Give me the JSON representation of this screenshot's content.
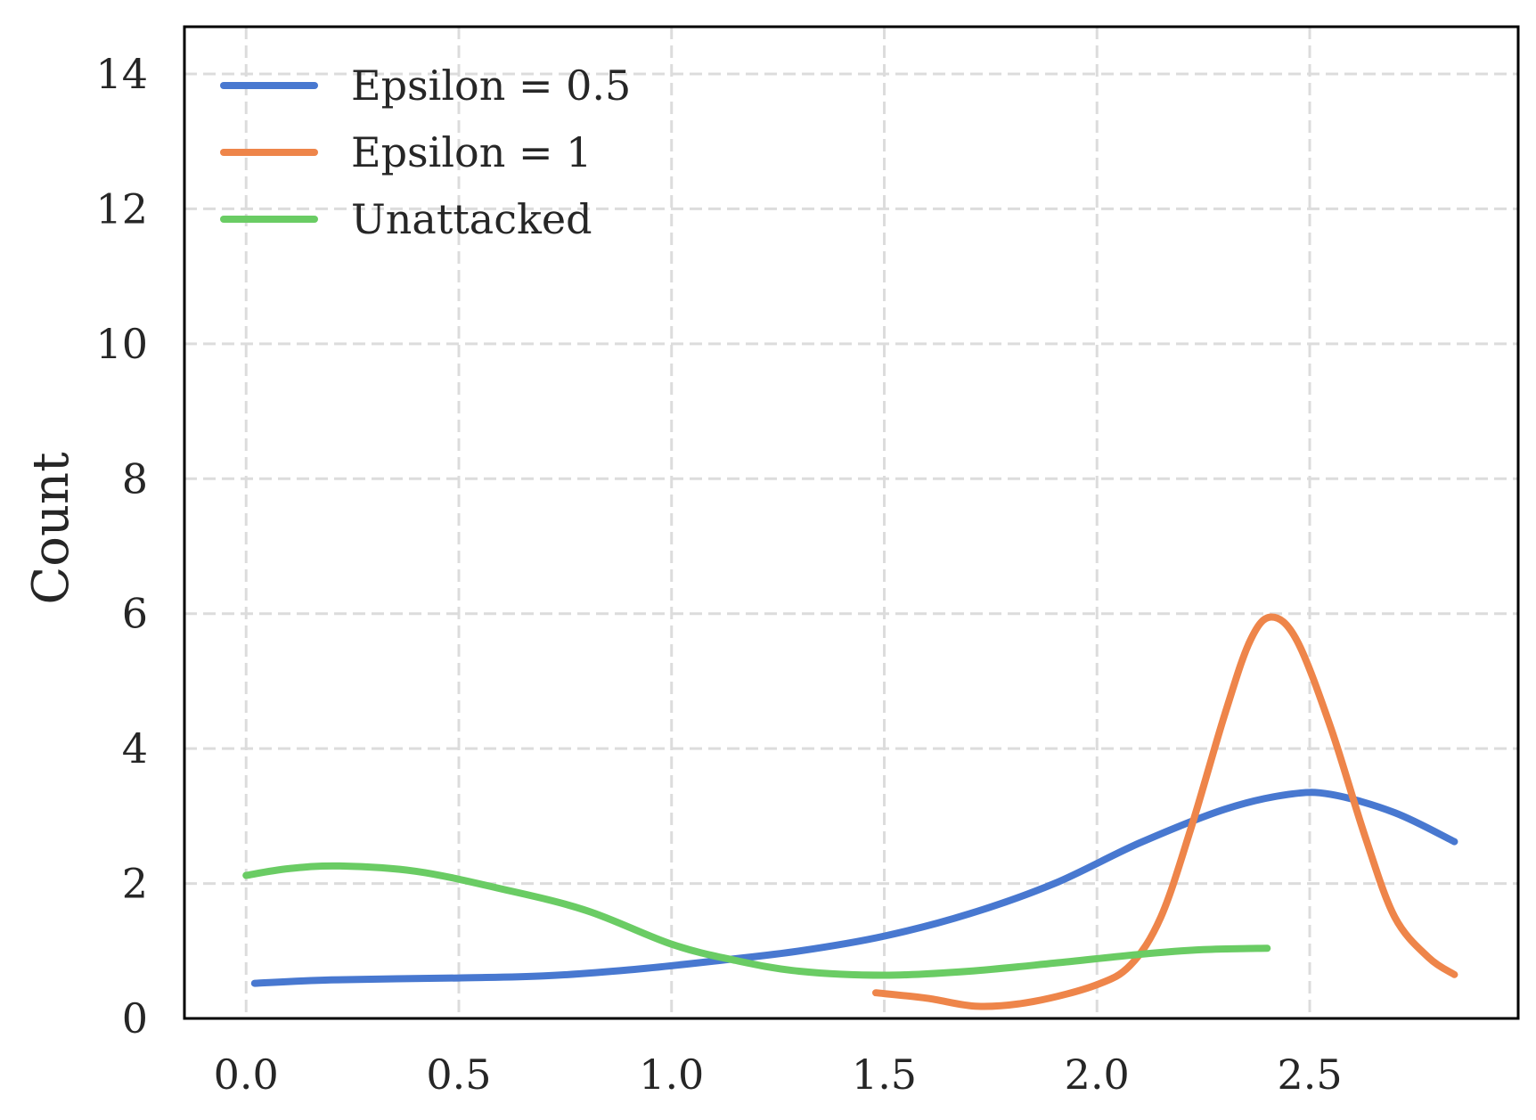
{
  "chart_data": {
    "type": "line",
    "title": "",
    "xlabel": "",
    "ylabel": "Count",
    "xlim": [
      -0.145,
      2.99
    ],
    "ylim": [
      0,
      14.7
    ],
    "grid": true,
    "legend_position": "top-left",
    "x_ticks": [
      0.0,
      0.5,
      1.0,
      1.5,
      2.0,
      2.5
    ],
    "x_tick_labels": [
      "0.0",
      "0.5",
      "1.0",
      "1.5",
      "2.0",
      "2.5"
    ],
    "y_ticks": [
      0,
      2,
      4,
      6,
      8,
      10,
      12,
      14
    ],
    "y_tick_labels": [
      "0",
      "2",
      "4",
      "6",
      "8",
      "10",
      "12",
      "14"
    ],
    "series": [
      {
        "name": "Epsilon = 0.5",
        "color": "#4878d0",
        "points": [
          [
            0.02,
            0.52
          ],
          [
            0.2,
            0.57
          ],
          [
            0.5,
            0.6
          ],
          [
            0.7,
            0.63
          ],
          [
            0.9,
            0.72
          ],
          [
            1.1,
            0.85
          ],
          [
            1.3,
            1.0
          ],
          [
            1.5,
            1.22
          ],
          [
            1.7,
            1.55
          ],
          [
            1.9,
            2.0
          ],
          [
            2.1,
            2.6
          ],
          [
            2.3,
            3.1
          ],
          [
            2.45,
            3.32
          ],
          [
            2.55,
            3.32
          ],
          [
            2.7,
            3.05
          ],
          [
            2.84,
            2.62
          ]
        ]
      },
      {
        "name": "Epsilon = 1",
        "color": "#ee854a",
        "points": [
          [
            1.48,
            0.38
          ],
          [
            1.6,
            0.3
          ],
          [
            1.72,
            0.18
          ],
          [
            1.85,
            0.25
          ],
          [
            2.0,
            0.5
          ],
          [
            2.08,
            0.8
          ],
          [
            2.15,
            1.5
          ],
          [
            2.22,
            2.8
          ],
          [
            2.3,
            4.5
          ],
          [
            2.36,
            5.6
          ],
          [
            2.41,
            5.95
          ],
          [
            2.47,
            5.6
          ],
          [
            2.55,
            4.3
          ],
          [
            2.63,
            2.7
          ],
          [
            2.7,
            1.5
          ],
          [
            2.78,
            0.9
          ],
          [
            2.84,
            0.65
          ]
        ]
      },
      {
        "name": "Unattacked",
        "color": "#6acc64",
        "points": [
          [
            0.0,
            2.12
          ],
          [
            0.1,
            2.22
          ],
          [
            0.22,
            2.26
          ],
          [
            0.4,
            2.18
          ],
          [
            0.6,
            1.92
          ],
          [
            0.8,
            1.6
          ],
          [
            1.0,
            1.1
          ],
          [
            1.15,
            0.86
          ],
          [
            1.3,
            0.7
          ],
          [
            1.5,
            0.64
          ],
          [
            1.7,
            0.7
          ],
          [
            1.9,
            0.82
          ],
          [
            2.1,
            0.95
          ],
          [
            2.25,
            1.02
          ],
          [
            2.4,
            1.04
          ]
        ]
      }
    ]
  }
}
